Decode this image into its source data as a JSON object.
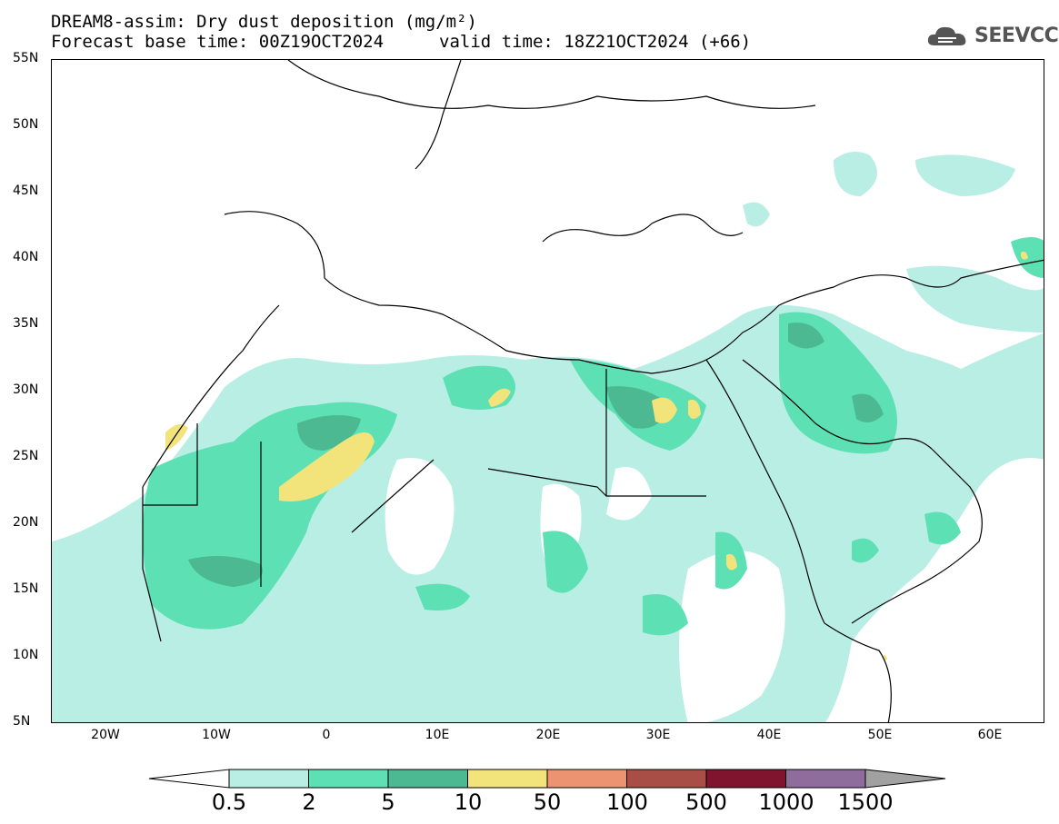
{
  "header": {
    "line1": "DREAM8-assim: Dry dust deposition (mg/m²)",
    "line2_base": "Forecast base time: 00Z19OCT2024",
    "line2_valid": "valid time: 18Z21OCT2024 (+66)"
  },
  "logo": {
    "text": "SEEVCCC",
    "icon": "cloud-icon"
  },
  "axes": {
    "lat_labels": [
      "55N",
      "50N",
      "45N",
      "40N",
      "35N",
      "30N",
      "25N",
      "20N",
      "15N",
      "10N",
      "5N"
    ],
    "lon_labels": [
      "20W",
      "10W",
      "0",
      "10E",
      "20E",
      "30E",
      "40E",
      "50E",
      "60E"
    ]
  },
  "colorbar": {
    "labels": [
      "0.5",
      "2",
      "5",
      "10",
      "50",
      "100",
      "500",
      "1000",
      "1500"
    ],
    "colors": [
      "#ffffff",
      "#b9eee5",
      "#5ee0b5",
      "#4cb992",
      "#f2e37b",
      "#ec9371",
      "#a94e46",
      "#80132e",
      "#8e6d9c",
      "#a1a1a1"
    ]
  }
}
